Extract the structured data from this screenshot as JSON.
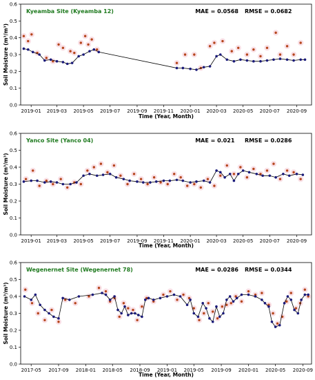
{
  "chart_data": [
    {
      "type": "scatter",
      "title": "Kyeamba Site (Kyeamba 12)",
      "mae_label": "MAE = 0.0568",
      "rmse_label": "RMSE = 0.0682",
      "xlabel": "Time (Year, Month)",
      "ylabel": "Soil Moisture (m³/m³)",
      "ylim": [
        0,
        0.6
      ],
      "yticks": [
        0.0,
        0.1,
        0.2,
        0.3,
        0.4,
        0.5,
        0.6
      ],
      "xlim": [
        "2018-12-08",
        "2020-10-05"
      ],
      "xticks": [
        "2019-01",
        "2019-03",
        "2019-05",
        "2019-07",
        "2019-09",
        "2019-11",
        "2020-01",
        "2020-03",
        "2020-05",
        "2020-07",
        "2020-09"
      ],
      "grid": false,
      "series": [
        {
          "role": "in-situ",
          "color": "#1a1a7a",
          "style": "line+dots",
          "x": [
            "2018-12-15",
            "2018-12-25",
            "2019-01-05",
            "2019-01-20",
            "2019-02-01",
            "2019-02-15",
            "2019-03-01",
            "2019-03-15",
            "2019-03-25",
            "2019-04-05",
            "2019-04-20",
            "2019-05-01",
            "2019-05-15",
            "2019-05-25",
            "2019-06-05",
            "2019-12-01",
            "2019-12-15",
            "2020-01-01",
            "2020-01-15",
            "2020-02-01",
            "2020-02-15",
            "2020-03-01",
            "2020-03-10",
            "2020-03-25",
            "2020-04-10",
            "2020-04-25",
            "2020-05-10",
            "2020-05-25",
            "2020-06-10",
            "2020-06-25",
            "2020-07-10",
            "2020-07-25",
            "2020-08-10",
            "2020-08-25",
            "2020-09-10",
            "2020-09-20"
          ],
          "y": [
            0.335,
            0.33,
            0.315,
            0.3,
            0.265,
            0.27,
            0.26,
            0.255,
            0.245,
            0.25,
            0.29,
            0.3,
            0.32,
            0.33,
            0.315,
            0.22,
            0.22,
            0.215,
            0.21,
            0.225,
            0.23,
            0.29,
            0.3,
            0.27,
            0.26,
            0.27,
            0.265,
            0.26,
            0.26,
            0.265,
            0.27,
            0.275,
            0.27,
            0.265,
            0.27,
            0.27
          ]
        },
        {
          "role": "estimated",
          "color": "#b5451b",
          "style": "dots",
          "x": [
            "2018-12-15",
            "2018-12-25",
            "2019-01-02",
            "2019-01-15",
            "2019-02-05",
            "2019-02-20",
            "2019-03-05",
            "2019-03-15",
            "2019-04-01",
            "2019-04-10",
            "2019-04-25",
            "2019-05-05",
            "2019-05-12",
            "2019-05-20",
            "2019-06-01",
            "2019-12-01",
            "2019-12-20",
            "2020-01-10",
            "2020-01-25",
            "2020-02-15",
            "2020-02-25",
            "2020-03-15",
            "2020-04-05",
            "2020-04-20",
            "2020-05-10",
            "2020-05-25",
            "2020-06-10",
            "2020-06-25",
            "2020-07-15",
            "2020-07-25",
            "2020-08-10",
            "2020-08-25",
            "2020-09-10"
          ],
          "y": [
            0.41,
            0.38,
            0.42,
            0.31,
            0.28,
            0.26,
            0.36,
            0.34,
            0.32,
            0.31,
            0.37,
            0.41,
            0.36,
            0.39,
            0.33,
            0.25,
            0.3,
            0.3,
            0.22,
            0.35,
            0.37,
            0.38,
            0.32,
            0.34,
            0.3,
            0.33,
            0.29,
            0.34,
            0.43,
            0.3,
            0.35,
            0.3,
            0.37
          ]
        }
      ]
    },
    {
      "type": "scatter",
      "title": "Yanco Site (Yanco 04)",
      "mae_label": "MAE = 0.021",
      "rmse_label": "RMSE = 0.0286",
      "xlabel": "Time (Year, Month)",
      "ylabel": "Soil Moisture (m³/m³)",
      "ylim": [
        0,
        0.6
      ],
      "yticks": [
        0.0,
        0.1,
        0.2,
        0.3,
        0.4,
        0.5,
        0.6
      ],
      "xlim": [
        "2018-12-08",
        "2020-10-05"
      ],
      "xticks": [
        "2019-01",
        "2019-03",
        "2019-05",
        "2019-07",
        "2019-09",
        "2019-11",
        "2020-01",
        "2020-03",
        "2020-05",
        "2020-07",
        "2020-09"
      ],
      "grid": false,
      "series": [
        {
          "role": "in-situ",
          "color": "#1a1a7a",
          "style": "line+dots",
          "x": [
            "2018-12-15",
            "2019-01-01",
            "2019-01-15",
            "2019-02-01",
            "2019-02-15",
            "2019-03-01",
            "2019-03-15",
            "2019-04-01",
            "2019-04-15",
            "2019-05-01",
            "2019-05-15",
            "2019-06-01",
            "2019-06-15",
            "2019-07-01",
            "2019-07-15",
            "2019-08-01",
            "2019-08-15",
            "2019-09-01",
            "2019-09-15",
            "2019-10-01",
            "2019-10-15",
            "2019-11-01",
            "2019-11-15",
            "2019-12-01",
            "2019-12-15",
            "2020-01-01",
            "2020-01-15",
            "2020-02-01",
            "2020-02-15",
            "2020-03-01",
            "2020-03-10",
            "2020-03-20",
            "2020-04-01",
            "2020-04-10",
            "2020-04-20",
            "2020-05-01",
            "2020-05-15",
            "2020-06-01",
            "2020-06-15",
            "2020-07-01",
            "2020-07-15",
            "2020-08-01",
            "2020-08-15",
            "2020-09-01",
            "2020-09-15"
          ],
          "y": [
            0.315,
            0.32,
            0.32,
            0.31,
            0.315,
            0.31,
            0.3,
            0.3,
            0.31,
            0.35,
            0.36,
            0.35,
            0.355,
            0.36,
            0.34,
            0.33,
            0.32,
            0.315,
            0.31,
            0.31,
            0.315,
            0.32,
            0.32,
            0.325,
            0.32,
            0.31,
            0.315,
            0.32,
            0.31,
            0.38,
            0.37,
            0.34,
            0.36,
            0.32,
            0.36,
            0.38,
            0.37,
            0.36,
            0.35,
            0.35,
            0.34,
            0.36,
            0.35,
            0.36,
            0.355
          ]
        },
        {
          "role": "estimated",
          "color": "#b5451b",
          "style": "dots",
          "x": [
            "2018-12-20",
            "2019-01-05",
            "2019-01-20",
            "2019-02-05",
            "2019-02-20",
            "2019-03-10",
            "2019-03-25",
            "2019-04-10",
            "2019-04-25",
            "2019-05-10",
            "2019-05-25",
            "2019-06-10",
            "2019-06-25",
            "2019-07-10",
            "2019-07-25",
            "2019-08-10",
            "2019-08-25",
            "2019-09-10",
            "2019-09-25",
            "2019-10-10",
            "2019-10-25",
            "2019-11-10",
            "2019-11-25",
            "2019-12-10",
            "2019-12-25",
            "2020-01-10",
            "2020-01-25",
            "2020-02-10",
            "2020-02-25",
            "2020-03-10",
            "2020-03-25",
            "2020-04-10",
            "2020-04-25",
            "2020-05-10",
            "2020-05-25",
            "2020-06-10",
            "2020-06-25",
            "2020-07-10",
            "2020-07-25",
            "2020-08-10",
            "2020-08-25",
            "2020-09-10"
          ],
          "y": [
            0.33,
            0.38,
            0.29,
            0.32,
            0.3,
            0.33,
            0.28,
            0.31,
            0.3,
            0.38,
            0.4,
            0.42,
            0.37,
            0.41,
            0.35,
            0.3,
            0.36,
            0.33,
            0.3,
            0.34,
            0.31,
            0.3,
            0.36,
            0.34,
            0.29,
            0.3,
            0.28,
            0.33,
            0.29,
            0.35,
            0.41,
            0.36,
            0.4,
            0.34,
            0.39,
            0.36,
            0.38,
            0.42,
            0.33,
            0.38,
            0.37,
            0.33
          ]
        }
      ]
    },
    {
      "type": "scatter",
      "title": "Wegenernet Site (Wegenernet 78)",
      "mae_label": "MAE = 0.0286",
      "rmse_label": "RMSE = 0.0344",
      "xlabel": "Time (Year, Month)",
      "ylabel": "Soil Moisture (m³/m³)",
      "ylim": [
        0,
        0.6
      ],
      "yticks": [
        0.0,
        0.1,
        0.2,
        0.3,
        0.4,
        0.5,
        0.6
      ],
      "xlim": [
        "2017-03-15",
        "2020-10-10"
      ],
      "xticks": [
        "2017-05",
        "2017-09",
        "2018-01",
        "2018-05",
        "2018-09",
        "2019-01",
        "2019-05",
        "2019-09",
        "2020-01",
        "2020-05",
        "2020-09"
      ],
      "grid": false,
      "series": [
        {
          "role": "in-situ",
          "color": "#1a1a7a",
          "style": "line+dots",
          "x": [
            "2017-04-01",
            "2017-05-01",
            "2017-05-20",
            "2017-06-10",
            "2017-07-01",
            "2017-07-20",
            "2017-08-10",
            "2017-09-01",
            "2017-09-20",
            "2017-10-20",
            "2017-12-01",
            "2018-02-01",
            "2018-03-15",
            "2018-04-01",
            "2018-04-20",
            "2018-05-10",
            "2018-05-25",
            "2018-06-10",
            "2018-06-25",
            "2018-07-10",
            "2018-07-25",
            "2018-08-10",
            "2018-08-25",
            "2018-09-10",
            "2018-09-25",
            "2018-10-10",
            "2018-11-01",
            "2018-12-01",
            "2019-01-01",
            "2019-02-01",
            "2019-03-01",
            "2019-04-01",
            "2019-04-15",
            "2019-05-01",
            "2019-05-20",
            "2019-06-10",
            "2019-06-25",
            "2019-07-10",
            "2019-07-25",
            "2019-08-10",
            "2019-08-25",
            "2019-09-10",
            "2019-09-25",
            "2019-10-10",
            "2019-10-25",
            "2019-11-10",
            "2019-12-01",
            "2020-01-01",
            "2020-02-01",
            "2020-03-01",
            "2020-03-15",
            "2020-04-01",
            "2020-04-15",
            "2020-05-01",
            "2020-05-20",
            "2020-06-10",
            "2020-06-25",
            "2020-07-10",
            "2020-07-25",
            "2020-08-10",
            "2020-08-25",
            "2020-09-10",
            "2020-09-25"
          ],
          "y": [
            0.4,
            0.38,
            0.41,
            0.35,
            0.32,
            0.3,
            0.28,
            0.27,
            0.39,
            0.38,
            0.4,
            0.41,
            0.42,
            0.41,
            0.38,
            0.4,
            0.32,
            0.3,
            0.34,
            0.29,
            0.3,
            0.3,
            0.29,
            0.28,
            0.38,
            0.39,
            0.38,
            0.39,
            0.4,
            0.41,
            0.4,
            0.35,
            0.38,
            0.3,
            0.28,
            0.36,
            0.33,
            0.27,
            0.25,
            0.34,
            0.28,
            0.3,
            0.38,
            0.4,
            0.37,
            0.39,
            0.41,
            0.41,
            0.4,
            0.38,
            0.36,
            0.34,
            0.25,
            0.22,
            0.23,
            0.36,
            0.4,
            0.38,
            0.32,
            0.3,
            0.38,
            0.41,
            0.41
          ]
        },
        {
          "role": "estimated",
          "color": "#b5451b",
          "style": "dots",
          "x": [
            "2017-04-05",
            "2017-05-05",
            "2017-06-01",
            "2017-07-01",
            "2017-08-01",
            "2017-09-01",
            "2017-10-01",
            "2017-11-15",
            "2018-01-15",
            "2018-03-01",
            "2018-04-01",
            "2018-04-20",
            "2018-05-10",
            "2018-06-01",
            "2018-06-20",
            "2018-07-10",
            "2018-08-01",
            "2018-08-20",
            "2018-09-10",
            "2018-10-01",
            "2018-11-01",
            "2018-12-15",
            "2019-01-15",
            "2019-02-15",
            "2019-03-15",
            "2019-04-10",
            "2019-05-01",
            "2019-05-25",
            "2019-06-15",
            "2019-07-05",
            "2019-07-25",
            "2019-08-15",
            "2019-09-05",
            "2019-09-25",
            "2019-10-15",
            "2019-11-05",
            "2019-12-01",
            "2020-01-01",
            "2020-02-01",
            "2020-03-01",
            "2020-04-01",
            "2020-04-20",
            "2020-05-10",
            "2020-06-01",
            "2020-06-20",
            "2020-07-10",
            "2020-08-01",
            "2020-08-20",
            "2020-09-10",
            "2020-09-25"
          ],
          "y": [
            0.44,
            0.36,
            0.3,
            0.26,
            0.32,
            0.25,
            0.38,
            0.36,
            0.4,
            0.45,
            0.43,
            0.37,
            0.39,
            0.28,
            0.36,
            0.33,
            0.32,
            0.26,
            0.34,
            0.39,
            0.37,
            0.41,
            0.43,
            0.38,
            0.41,
            0.39,
            0.33,
            0.26,
            0.3,
            0.36,
            0.31,
            0.27,
            0.34,
            0.35,
            0.36,
            0.4,
            0.37,
            0.43,
            0.41,
            0.42,
            0.35,
            0.3,
            0.24,
            0.28,
            0.37,
            0.42,
            0.33,
            0.36,
            0.44,
            0.4
          ]
        }
      ]
    }
  ]
}
